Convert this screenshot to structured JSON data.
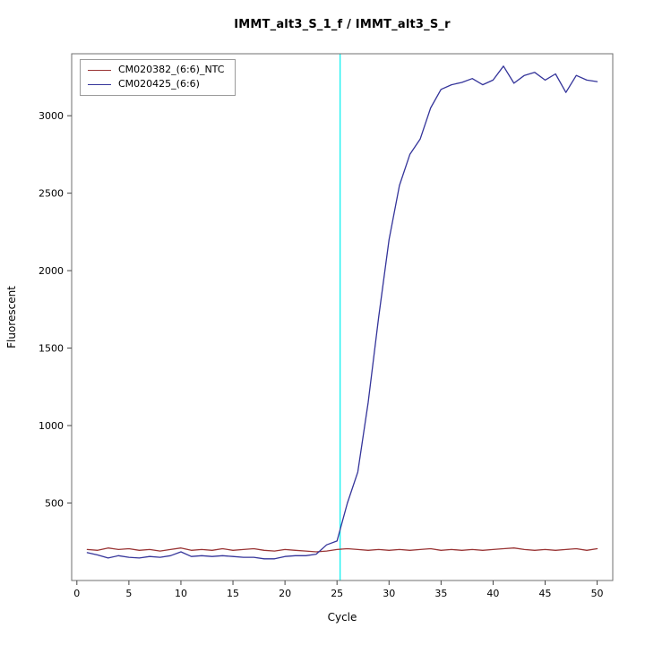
{
  "chart_data": {
    "type": "line",
    "title": "IMMT_alt3_S_1_f / IMMT_alt3_S_r",
    "xlabel": "Cycle",
    "ylabel": "Fluorescent",
    "xlim": [
      -0.5,
      51.5
    ],
    "ylim": [
      0,
      3400
    ],
    "x_ticks": [
      0,
      5,
      10,
      15,
      20,
      25,
      30,
      35,
      40,
      45,
      50
    ],
    "y_ticks": [
      500,
      1000,
      1500,
      2000,
      2500,
      3000
    ],
    "grid": false,
    "legend_position": "top-left",
    "threshold_line": {
      "x": 25.3,
      "color": "#00f0f0"
    },
    "x": [
      1,
      2,
      3,
      4,
      5,
      6,
      7,
      8,
      9,
      10,
      11,
      12,
      13,
      14,
      15,
      16,
      17,
      18,
      19,
      20,
      21,
      22,
      23,
      24,
      25,
      26,
      27,
      28,
      29,
      30,
      31,
      32,
      33,
      34,
      35,
      36,
      37,
      38,
      39,
      40,
      41,
      42,
      43,
      44,
      45,
      46,
      47,
      48,
      49,
      50
    ],
    "series": [
      {
        "name": "CM020382_(6:6)_NTC",
        "color": "#993434",
        "values": [
          200,
          195,
          210,
          200,
          205,
          195,
          200,
          190,
          200,
          210,
          195,
          200,
          195,
          205,
          195,
          200,
          205,
          195,
          190,
          200,
          195,
          190,
          185,
          190,
          200,
          205,
          200,
          195,
          200,
          195,
          200,
          195,
          200,
          205,
          195,
          200,
          195,
          200,
          195,
          200,
          205,
          210,
          200,
          195,
          200,
          195,
          200,
          205,
          195,
          205
        ]
      },
      {
        "name": "CM020425_(6:6)",
        "color": "#34349a",
        "values": [
          180,
          165,
          145,
          160,
          150,
          145,
          155,
          150,
          160,
          185,
          155,
          160,
          155,
          160,
          155,
          150,
          150,
          140,
          140,
          155,
          160,
          160,
          170,
          230,
          255,
          500,
          700,
          1150,
          1700,
          2200,
          2550,
          2750,
          2850,
          3050,
          3170,
          3200,
          3215,
          3240,
          3200,
          3230,
          3320,
          3210,
          3260,
          3280,
          3230,
          3270,
          3150,
          3260,
          3230,
          3220
        ]
      }
    ]
  }
}
